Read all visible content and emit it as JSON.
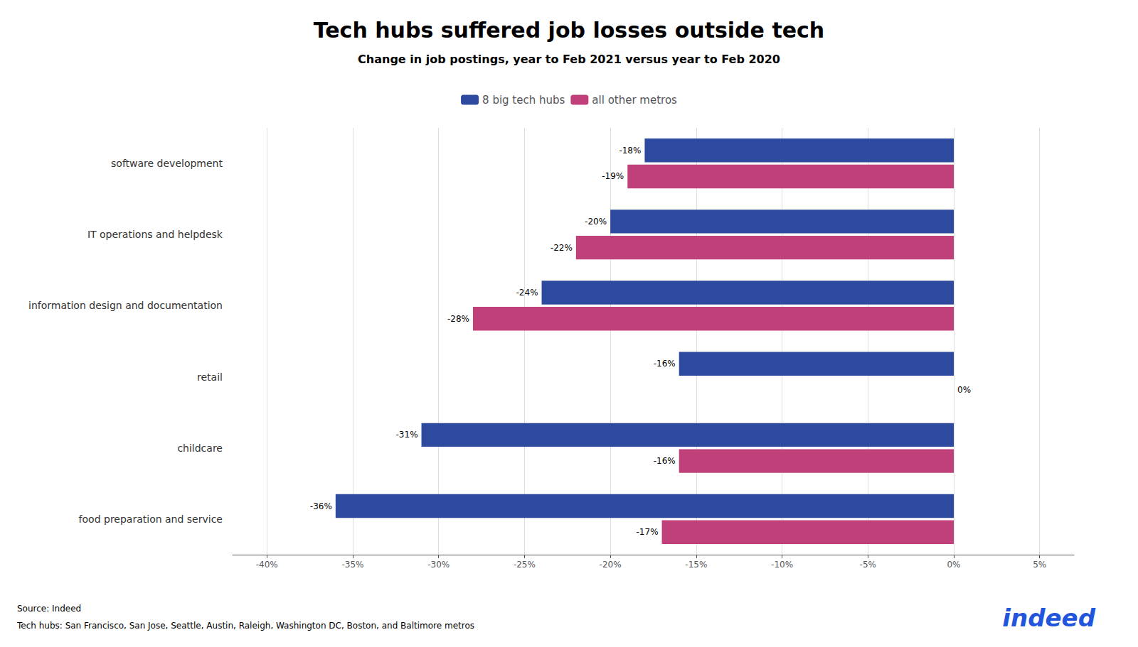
{
  "chart_data": {
    "type": "bar",
    "orientation": "horizontal",
    "title": "Tech hubs suffered job losses outside tech",
    "subtitle": "Change in job postings, year to Feb 2021 versus year to Feb 2020",
    "categories": [
      "software development",
      "IT operations and helpdesk",
      "information design and documentation",
      "retail",
      "childcare",
      "food preparation and service"
    ],
    "series": [
      {
        "name": "8 big tech hubs",
        "color": "#2e4a9e",
        "values": [
          -18,
          -20,
          -24,
          -16,
          -31,
          -36
        ],
        "value_labels": [
          "-18%",
          "-20%",
          "-24%",
          "-16%",
          "-31%",
          "-36%"
        ]
      },
      {
        "name": "all other metros",
        "color": "#c0407a",
        "values": [
          -19,
          -22,
          -28,
          0,
          -16,
          -17
        ],
        "value_labels": [
          "-19%",
          "-22%",
          "-28%",
          "0%",
          "-16%",
          "-17%"
        ]
      }
    ],
    "xlim": [
      -42,
      7
    ],
    "xticks": [
      {
        "value": -40,
        "label": "-40%"
      },
      {
        "value": -35,
        "label": "-35%"
      },
      {
        "value": -30,
        "label": "-30%"
      },
      {
        "value": -25,
        "label": "-25%"
      },
      {
        "value": -20,
        "label": "-20%"
      },
      {
        "value": -15,
        "label": "-15%"
      },
      {
        "value": -10,
        "label": "-10%"
      },
      {
        "value": -5,
        "label": "-5%"
      },
      {
        "value": 0,
        "label": "0%"
      },
      {
        "value": 5,
        "label": "5%"
      }
    ],
    "grid": true,
    "legend": "top",
    "data_labels": true,
    "annotations": [
      {
        "text": "Source: Indeed"
      },
      {
        "text": "Tech hubs: San Francisco, San Jose, Seattle, Austin, Raleigh, Washington DC, Boston, and Baltimore metros"
      },
      {
        "text": "indeed",
        "color": "#2255dd"
      }
    ]
  }
}
